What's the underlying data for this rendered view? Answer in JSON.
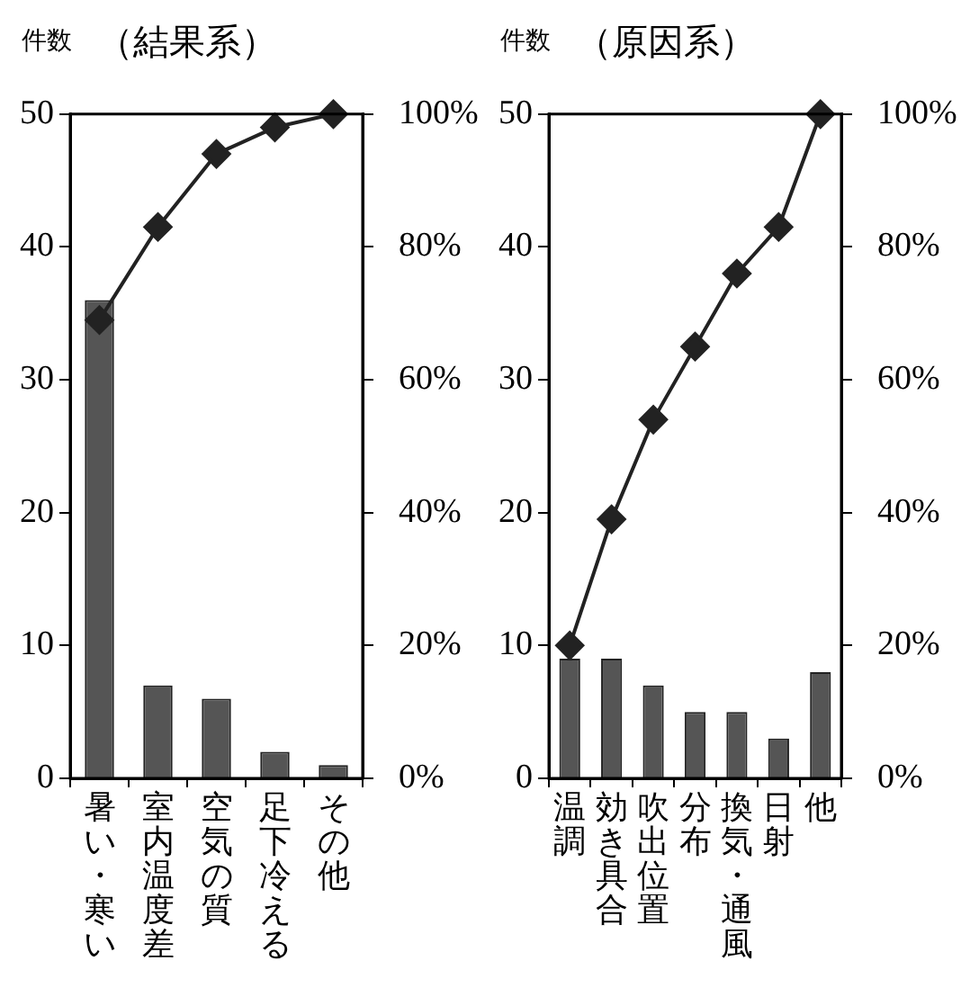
{
  "chart_data": [
    {
      "type": "bar",
      "title": "（結果系）",
      "ylabel": "件数",
      "categories": [
        "暑い・寒い",
        "室内温度差",
        "空気の質",
        "足下冷える",
        "その他"
      ],
      "series": [
        {
          "color": "#555555",
          "values": [
            36,
            7,
            6,
            2,
            1
          ]
        },
        {
          "type": "line",
          "axis": "y2",
          "color": "#222222",
          "values": [
            69,
            83,
            94,
            98,
            100
          ]
        }
      ],
      "ylim": [
        0,
        50
      ],
      "yticks": [
        0,
        10,
        20,
        30,
        40,
        50
      ],
      "y2lim": [
        0,
        100
      ],
      "y2ticks": [
        {
          "value": 0,
          "label": "0%"
        },
        {
          "value": 20,
          "label": "20%"
        },
        {
          "value": 40,
          "label": "40%"
        },
        {
          "value": 60,
          "label": "60%"
        },
        {
          "value": 80,
          "label": "80%"
        },
        {
          "value": 100,
          "label": "100%"
        }
      ],
      "grid": false,
      "legend": false,
      "marker": "diamond",
      "line_style": "solid"
    },
    {
      "type": "bar",
      "title": "（原因系）",
      "ylabel": "件数",
      "categories": [
        "温調",
        "効き具合",
        "吹出位置",
        "分布",
        "換気・通風",
        "日射",
        "他"
      ],
      "series": [
        {
          "color": "#555555",
          "values": [
            9,
            9,
            7,
            5,
            5,
            3,
            8
          ]
        },
        {
          "type": "line",
          "axis": "y2",
          "color": "#222222",
          "values": [
            20,
            39,
            54,
            65,
            76,
            83,
            100
          ]
        }
      ],
      "ylim": [
        0,
        50
      ],
      "yticks": [
        0,
        10,
        20,
        30,
        40,
        50
      ],
      "y2lim": [
        0,
        100
      ],
      "y2ticks": [
        {
          "value": 0,
          "label": "0%"
        },
        {
          "value": 20,
          "label": "20%"
        },
        {
          "value": 40,
          "label": "40%"
        },
        {
          "value": 60,
          "label": "60%"
        },
        {
          "value": 80,
          "label": "80%"
        },
        {
          "value": 100,
          "label": "100%"
        }
      ],
      "grid": false,
      "legend": false,
      "marker": "diamond",
      "line_style": "solid"
    }
  ]
}
